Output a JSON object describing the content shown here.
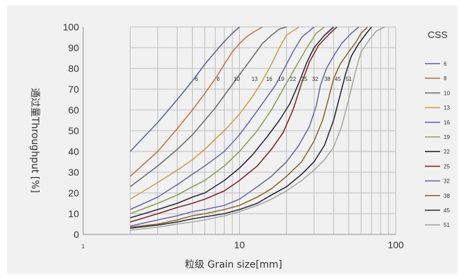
{
  "chart_data": {
    "type": "line",
    "xlabel": "粒级 Grain size[mm]",
    "ylabel": "通过量Throughput [%]",
    "x_scale": "log",
    "xlim": [
      1,
      100
    ],
    "ylim": [
      0,
      100
    ],
    "y_ticks": [
      "0",
      "10",
      "20",
      "30",
      "40",
      "50",
      "60",
      "70",
      "80",
      "90",
      "100"
    ],
    "x_ticks": [
      {
        "value": 1,
        "label": "1",
        "size": "small"
      },
      {
        "value": 10,
        "label": "10",
        "size": "large"
      },
      {
        "value": 100,
        "label": "100",
        "size": "large"
      }
    ],
    "grid": true,
    "legend_title": "CSS",
    "legend_position": "right",
    "series": [
      {
        "name": "6",
        "color": "#5a6590",
        "label_at": [
          5.3,
          75
        ],
        "points": [
          [
            2,
            40
          ],
          [
            3,
            54
          ],
          [
            4,
            65
          ],
          [
            5,
            74
          ],
          [
            6,
            82
          ],
          [
            7,
            88
          ],
          [
            8,
            93
          ],
          [
            9,
            97
          ],
          [
            10,
            100
          ]
        ]
      },
      {
        "name": "8",
        "color": "#c0764a",
        "label_at": [
          7.3,
          75
        ],
        "points": [
          [
            2,
            28
          ],
          [
            3,
            40
          ],
          [
            4,
            51
          ],
          [
            5,
            60
          ],
          [
            6,
            68
          ],
          [
            7,
            75
          ],
          [
            8,
            82
          ],
          [
            9,
            88
          ],
          [
            10,
            92
          ],
          [
            11,
            95
          ],
          [
            12,
            97
          ],
          [
            14,
            100
          ]
        ]
      },
      {
        "name": "10",
        "color": "#6e6e6e",
        "label_at": [
          9.6,
          75
        ],
        "points": [
          [
            2,
            23
          ],
          [
            3,
            33
          ],
          [
            4,
            41
          ],
          [
            5,
            48
          ],
          [
            6,
            55
          ],
          [
            7,
            61
          ],
          [
            8,
            67
          ],
          [
            10,
            77
          ],
          [
            12,
            85
          ],
          [
            14,
            92
          ],
          [
            16,
            96
          ],
          [
            18,
            99
          ],
          [
            20,
            100
          ]
        ]
      },
      {
        "name": "13",
        "color": "#c9a24a",
        "label_at": [
          12.5,
          75
        ],
        "points": [
          [
            2,
            17
          ],
          [
            3,
            25
          ],
          [
            4,
            31
          ],
          [
            5,
            36
          ],
          [
            6,
            41
          ],
          [
            7,
            46
          ],
          [
            8,
            50
          ],
          [
            10,
            58
          ],
          [
            12,
            66
          ],
          [
            14,
            74
          ],
          [
            16,
            82
          ],
          [
            18,
            90
          ],
          [
            20,
            96
          ],
          [
            24,
            100
          ]
        ]
      },
      {
        "name": "16",
        "color": "#6a6aa6",
        "label_at": [
          15.5,
          75
        ],
        "points": [
          [
            2,
            12
          ],
          [
            3,
            18
          ],
          [
            4,
            24
          ],
          [
            5,
            29
          ],
          [
            6,
            33
          ],
          [
            8,
            40
          ],
          [
            10,
            48
          ],
          [
            12,
            56
          ],
          [
            14,
            63
          ],
          [
            17,
            72
          ],
          [
            20,
            82
          ],
          [
            22,
            88
          ],
          [
            25,
            95
          ],
          [
            30,
            100
          ]
        ]
      },
      {
        "name": "19",
        "color": "#8aa05a",
        "label_at": [
          18.5,
          75
        ],
        "points": [
          [
            2,
            10
          ],
          [
            3,
            15
          ],
          [
            4,
            19
          ],
          [
            5,
            23
          ],
          [
            6,
            26
          ],
          [
            8,
            33
          ],
          [
            10,
            40
          ],
          [
            13,
            50
          ],
          [
            16,
            60
          ],
          [
            19,
            70
          ],
          [
            23,
            81
          ],
          [
            27,
            90
          ],
          [
            31,
            97
          ],
          [
            35,
            100
          ]
        ]
      },
      {
        "name": "22",
        "color": "#2b2b3a",
        "label_at": [
          22,
          75
        ],
        "points": [
          [
            2,
            8
          ],
          [
            3,
            12
          ],
          [
            4,
            15
          ],
          [
            5,
            18
          ],
          [
            6,
            20
          ],
          [
            8,
            26
          ],
          [
            10,
            32
          ],
          [
            12,
            38
          ],
          [
            15,
            47
          ],
          [
            18,
            55
          ],
          [
            21,
            63
          ],
          [
            24,
            73
          ],
          [
            27,
            83
          ],
          [
            30,
            90
          ],
          [
            35,
            96
          ],
          [
            40,
            100
          ]
        ]
      },
      {
        "name": "25",
        "color": "#7a2a2a",
        "label_at": [
          26,
          75
        ],
        "points": [
          [
            2,
            6
          ],
          [
            3,
            10
          ],
          [
            4,
            13
          ],
          [
            5,
            15
          ],
          [
            6,
            17
          ],
          [
            8,
            21
          ],
          [
            10,
            26
          ],
          [
            13,
            33
          ],
          [
            16,
            41
          ],
          [
            19,
            49
          ],
          [
            22,
            60
          ],
          [
            25,
            73
          ],
          [
            28,
            83
          ],
          [
            32,
            91
          ],
          [
            38,
            97
          ],
          [
            42,
            100
          ]
        ]
      },
      {
        "name": "32",
        "color": "#6a6aa6",
        "label_at": [
          30.5,
          75
        ],
        "points": [
          [
            2,
            4
          ],
          [
            3,
            7
          ],
          [
            4,
            9
          ],
          [
            5,
            11
          ],
          [
            6,
            12
          ],
          [
            8,
            14
          ],
          [
            10,
            17
          ],
          [
            13,
            23
          ],
          [
            16,
            28
          ],
          [
            20,
            35
          ],
          [
            24,
            43
          ],
          [
            28,
            52
          ],
          [
            31,
            62
          ],
          [
            33,
            72
          ],
          [
            36,
            80
          ],
          [
            40,
            86
          ],
          [
            45,
            92
          ],
          [
            52,
            97
          ],
          [
            58,
            100
          ]
        ]
      },
      {
        "name": "38",
        "color": "#8b6a30",
        "label_at": [
          36.5,
          75
        ],
        "points": [
          [
            2,
            3.5
          ],
          [
            3,
            5
          ],
          [
            4,
            7
          ],
          [
            5,
            9
          ],
          [
            6,
            10
          ],
          [
            8,
            12
          ],
          [
            10,
            14
          ],
          [
            13,
            18
          ],
          [
            16,
            22
          ],
          [
            20,
            28
          ],
          [
            25,
            35
          ],
          [
            30,
            45
          ],
          [
            34,
            55
          ],
          [
            37,
            65
          ],
          [
            40,
            75
          ],
          [
            44,
            82
          ],
          [
            50,
            88
          ],
          [
            56,
            93
          ],
          [
            60,
            97
          ],
          [
            66,
            100
          ]
        ]
      },
      {
        "name": "45",
        "color": "#2b2b3a",
        "label_at": [
          42.5,
          75
        ],
        "points": [
          [
            2,
            3
          ],
          [
            3,
            4.5
          ],
          [
            4,
            6
          ],
          [
            5,
            7.5
          ],
          [
            6,
            8.5
          ],
          [
            8,
            10
          ],
          [
            10,
            12
          ],
          [
            13,
            15
          ],
          [
            16,
            19
          ],
          [
            20,
            23
          ],
          [
            25,
            29
          ],
          [
            30,
            35
          ],
          [
            35,
            43
          ],
          [
            40,
            55
          ],
          [
            44,
            67
          ],
          [
            48,
            78
          ],
          [
            52,
            86
          ],
          [
            58,
            92
          ],
          [
            65,
            97
          ],
          [
            70,
            100
          ]
        ]
      },
      {
        "name": "51",
        "color": "#a8a8a0",
        "label_at": [
          50,
          75
        ],
        "points": [
          [
            2,
            2
          ],
          [
            3,
            3.5
          ],
          [
            4,
            5
          ],
          [
            5,
            6
          ],
          [
            6,
            7
          ],
          [
            8,
            9
          ],
          [
            10,
            11
          ],
          [
            13,
            14
          ],
          [
            16,
            17
          ],
          [
            20,
            21
          ],
          [
            25,
            26
          ],
          [
            30,
            31
          ],
          [
            35,
            36
          ],
          [
            40,
            42
          ],
          [
            45,
            52
          ],
          [
            50,
            65
          ],
          [
            55,
            78
          ],
          [
            60,
            88
          ],
          [
            68,
            94
          ],
          [
            75,
            98
          ],
          [
            85,
            100
          ]
        ]
      }
    ]
  }
}
